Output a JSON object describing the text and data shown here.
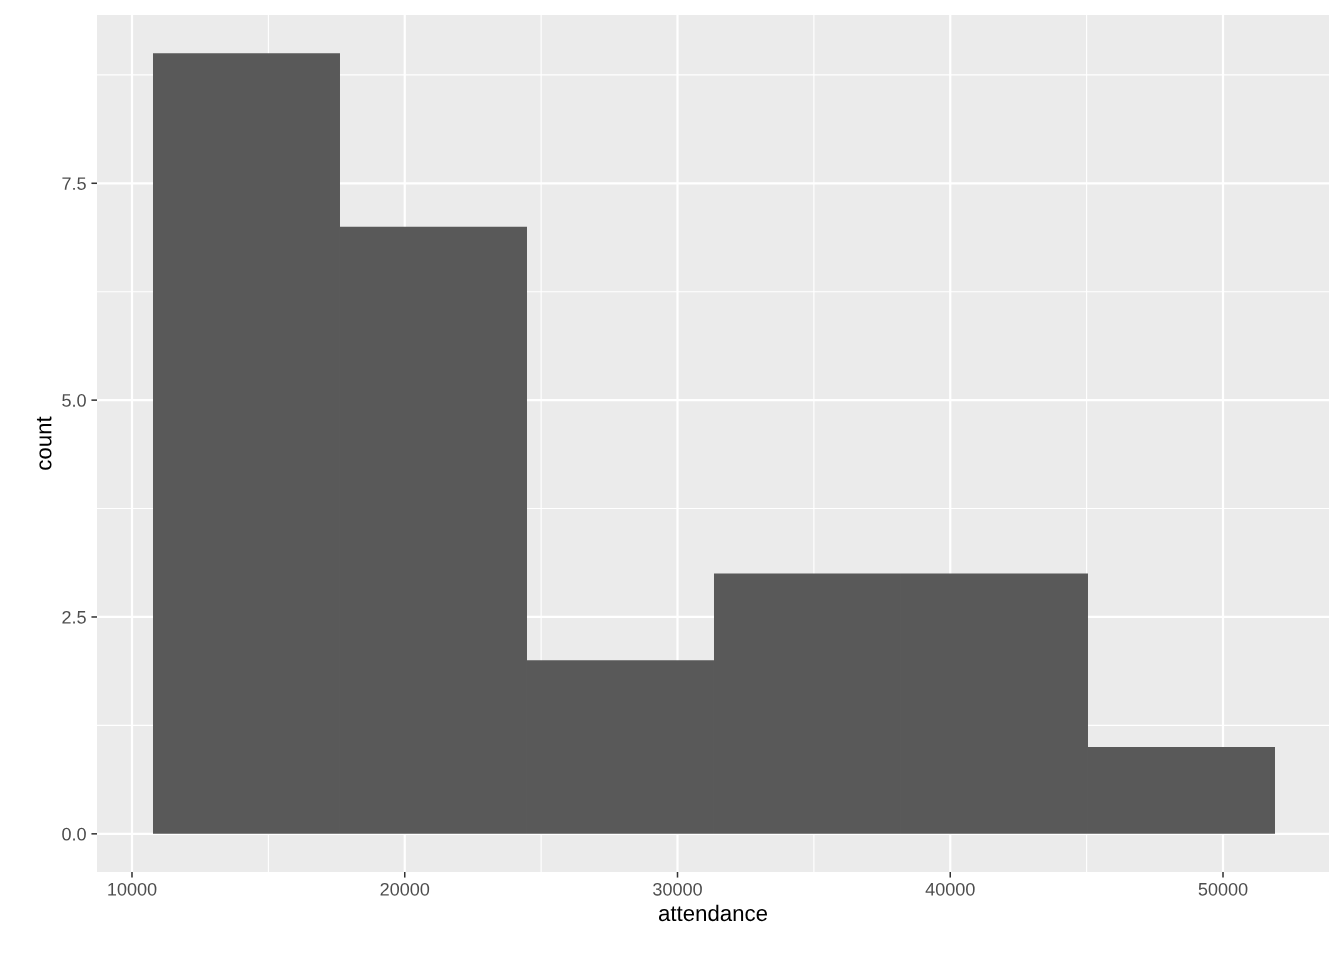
{
  "chart_data": {
    "type": "histogram",
    "xlabel": "attendance",
    "ylabel": "count",
    "bins": [
      10770,
      17626,
      24482,
      31338,
      38194,
      45050,
      51906
    ],
    "values": [
      9,
      7,
      2,
      3,
      3,
      1
    ],
    "color": "#595959",
    "xlim": [
      8717,
      53886
    ],
    "ylim": [
      -0.44,
      9.44
    ],
    "xticks": [
      10000,
      20000,
      30000,
      40000,
      50000
    ],
    "yticks": [
      {
        "value": 0,
        "label": "0.0"
      },
      {
        "value": 2.5,
        "label": "2.5"
      },
      {
        "value": 5,
        "label": "5.0"
      },
      {
        "value": 7.5,
        "label": "7.5"
      }
    ],
    "grid": true
  }
}
